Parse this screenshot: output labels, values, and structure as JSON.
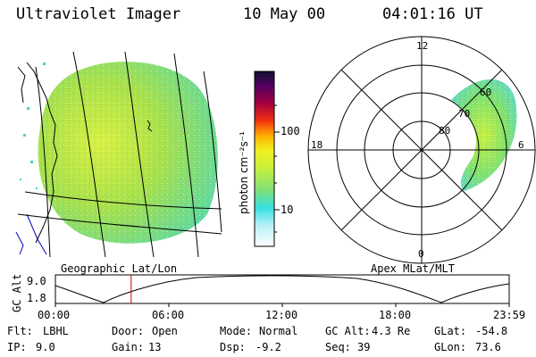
{
  "header": {
    "instrument": "Ultraviolet Imager",
    "date": "10 May 00",
    "time": "04:01:16 UT"
  },
  "geo_map": {
    "caption": "Geographic Lat/Lon"
  },
  "colorbar": {
    "unit_label": "photon cm⁻²s⁻¹",
    "ticks": [
      "100",
      "10"
    ]
  },
  "polar_plot": {
    "caption": "Apex MLat/MLT",
    "mlt_labels": {
      "top": "12",
      "bottom": "0",
      "left": "18",
      "right": "6"
    },
    "mlat_labels": [
      "60",
      "70",
      "80"
    ]
  },
  "altitude_plot": {
    "ylabel": "GC Alt",
    "yticks": [
      "9.0",
      "1.8"
    ],
    "xticks": [
      "00:00",
      "06:00",
      "12:00",
      "18:00",
      "23:59"
    ],
    "current_time_fraction": 0.167
  },
  "footer": {
    "row1": [
      {
        "label": "Flt:",
        "value": "LBHL"
      },
      {
        "label": "Door:",
        "value": "Open"
      },
      {
        "label": "Mode:",
        "value": "Normal"
      },
      {
        "label": "GC Alt:",
        "value": "4.3 Re"
      },
      {
        "label": "GLat:",
        "value": "-54.8"
      }
    ],
    "row2": [
      {
        "label": "IP:",
        "value": "9.0"
      },
      {
        "label": "Gain:",
        "value": "13"
      },
      {
        "label": "Dsp:",
        "value": "-9.2"
      },
      {
        "label": "Seq:",
        "value": "39"
      },
      {
        "label": "GLon:",
        "value": "73.6"
      }
    ]
  },
  "colors": {
    "low": "#c8f0f5",
    "mid": "#9fe05a",
    "high": "#f5c400",
    "marker": "#d40000"
  }
}
